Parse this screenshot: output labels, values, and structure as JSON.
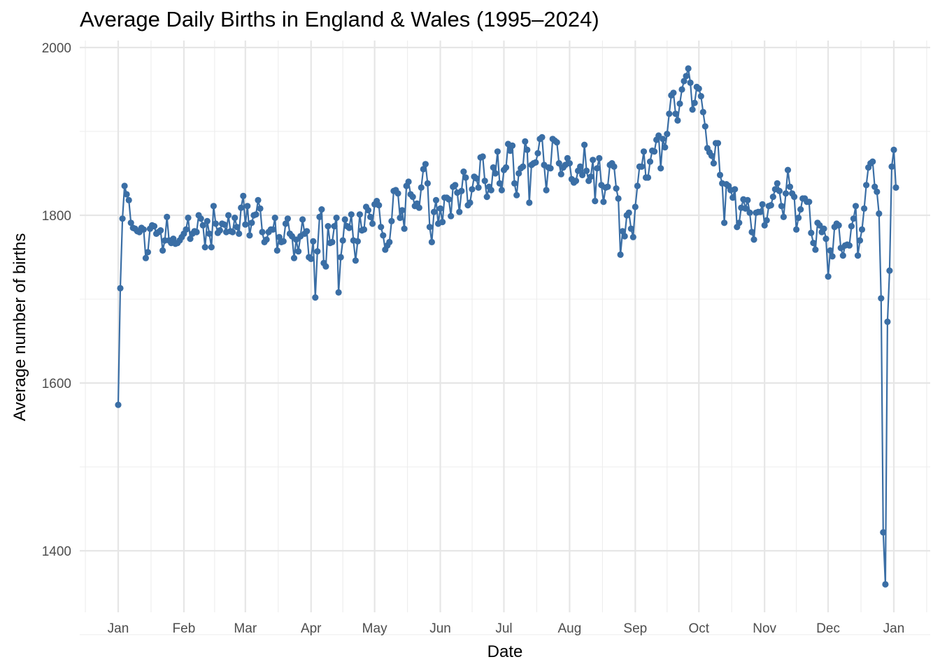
{
  "chart_data": {
    "type": "line",
    "title": "Average Daily Births in England & Wales (1995–2024)",
    "xlabel": "Date",
    "ylabel": "Average number of births",
    "ylim": [
      1330,
      2000
    ],
    "y_ticks": [
      1400,
      1600,
      1800,
      2000
    ],
    "y_tick_labels": [
      "1400",
      "1600",
      "1800",
      "2000"
    ],
    "x_tick_labels": [
      "Jan",
      "Feb",
      "Mar",
      "Apr",
      "May",
      "Jun",
      "Jul",
      "Aug",
      "Sep",
      "Oct",
      "Nov",
      "Dec",
      "Jan"
    ],
    "x_tick_days": [
      0,
      31,
      60,
      91,
      121,
      152,
      182,
      213,
      244,
      274,
      305,
      335,
      366
    ],
    "grid": true,
    "legend": "none",
    "series_color": "#3a6ea5",
    "series": [
      {
        "name": "Average daily births",
        "x_unit": "day of year (0 = Jan 1, leap-year calendar)",
        "values": [
          1574,
          1713,
          1796,
          1835,
          1825,
          1818,
          1791,
          1785,
          1784,
          1781,
          1780,
          1785,
          1783,
          1749,
          1756,
          1784,
          1788,
          1787,
          1778,
          1780,
          1782,
          1758,
          1770,
          1798,
          1770,
          1767,
          1772,
          1766,
          1767,
          1770,
          1774,
          1778,
          1783,
          1797,
          1772,
          1778,
          1781,
          1780,
          1800,
          1796,
          1788,
          1762,
          1793,
          1778,
          1762,
          1811,
          1790,
          1779,
          1782,
          1790,
          1789,
          1780,
          1800,
          1781,
          1780,
          1797,
          1786,
          1778,
          1809,
          1823,
          1789,
          1811,
          1776,
          1791,
          1800,
          1801,
          1818,
          1808,
          1780,
          1768,
          1771,
          1780,
          1783,
          1783,
          1797,
          1758,
          1774,
          1768,
          1769,
          1790,
          1796,
          1778,
          1775,
          1749,
          1771,
          1757,
          1775,
          1795,
          1778,
          1781,
          1750,
          1748,
          1769,
          1702,
          1757,
          1798,
          1807,
          1743,
          1739,
          1787,
          1767,
          1768,
          1787,
          1797,
          1708,
          1750,
          1770,
          1795,
          1787,
          1785,
          1801,
          1770,
          1746,
          1769,
          1801,
          1782,
          1783,
          1810,
          1806,
          1798,
          1790,
          1813,
          1817,
          1812,
          1786,
          1776,
          1759,
          1764,
          1768,
          1793,
          1829,
          1830,
          1826,
          1797,
          1806,
          1784,
          1835,
          1840,
          1825,
          1822,
          1811,
          1814,
          1809,
          1833,
          1855,
          1861,
          1838,
          1786,
          1768,
          1804,
          1818,
          1790,
          1808,
          1792,
          1821,
          1821,
          1819,
          1799,
          1834,
          1836,
          1827,
          1804,
          1829,
          1852,
          1845,
          1812,
          1815,
          1831,
          1846,
          1844,
          1833,
          1869,
          1870,
          1841,
          1822,
          1834,
          1830,
          1857,
          1850,
          1876,
          1838,
          1830,
          1854,
          1857,
          1885,
          1877,
          1883,
          1838,
          1824,
          1850,
          1856,
          1858,
          1888,
          1878,
          1815,
          1860,
          1862,
          1863,
          1874,
          1891,
          1893,
          1860,
          1830,
          1857,
          1856,
          1891,
          1889,
          1887,
          1862,
          1849,
          1857,
          1860,
          1868,
          1862,
          1843,
          1839,
          1841,
          1853,
          1858,
          1848,
          1884,
          1853,
          1841,
          1846,
          1866,
          1817,
          1856,
          1868,
          1836,
          1816,
          1833,
          1834,
          1860,
          1862,
          1858,
          1832,
          1820,
          1753,
          1781,
          1775,
          1800,
          1803,
          1784,
          1774,
          1810,
          1835,
          1858,
          1858,
          1876,
          1845,
          1845,
          1864,
          1877,
          1876,
          1890,
          1895,
          1856,
          1891,
          1881,
          1897,
          1921,
          1943,
          1946,
          1921,
          1913,
          1933,
          1950,
          1960,
          1966,
          1975,
          1958,
          1926,
          1934,
          1953,
          1951,
          1942,
          1923,
          1906,
          1880,
          1875,
          1871,
          1862,
          1886,
          1886,
          1848,
          1838,
          1791,
          1837,
          1835,
          1830,
          1821,
          1831,
          1786,
          1791,
          1809,
          1819,
          1808,
          1818,
          1803,
          1780,
          1771,
          1803,
          1804,
          1804,
          1813,
          1788,
          1794,
          1811,
          1812,
          1822,
          1831,
          1838,
          1829,
          1811,
          1798,
          1826,
          1854,
          1834,
          1826,
          1822,
          1783,
          1797,
          1807,
          1820,
          1820,
          1816,
          1816,
          1779,
          1767,
          1759,
          1791,
          1788,
          1780,
          1784,
          1772,
          1727,
          1758,
          1751,
          1786,
          1790,
          1788,
          1761,
          1752,
          1764,
          1765,
          1764,
          1787,
          1796,
          1811,
          1752,
          1770,
          1783,
          1808,
          1836,
          1857,
          1862,
          1864,
          1834,
          1828,
          1802,
          1701,
          1422,
          1360,
          1673,
          1734,
          1858,
          1878,
          1833
        ]
      }
    ]
  }
}
